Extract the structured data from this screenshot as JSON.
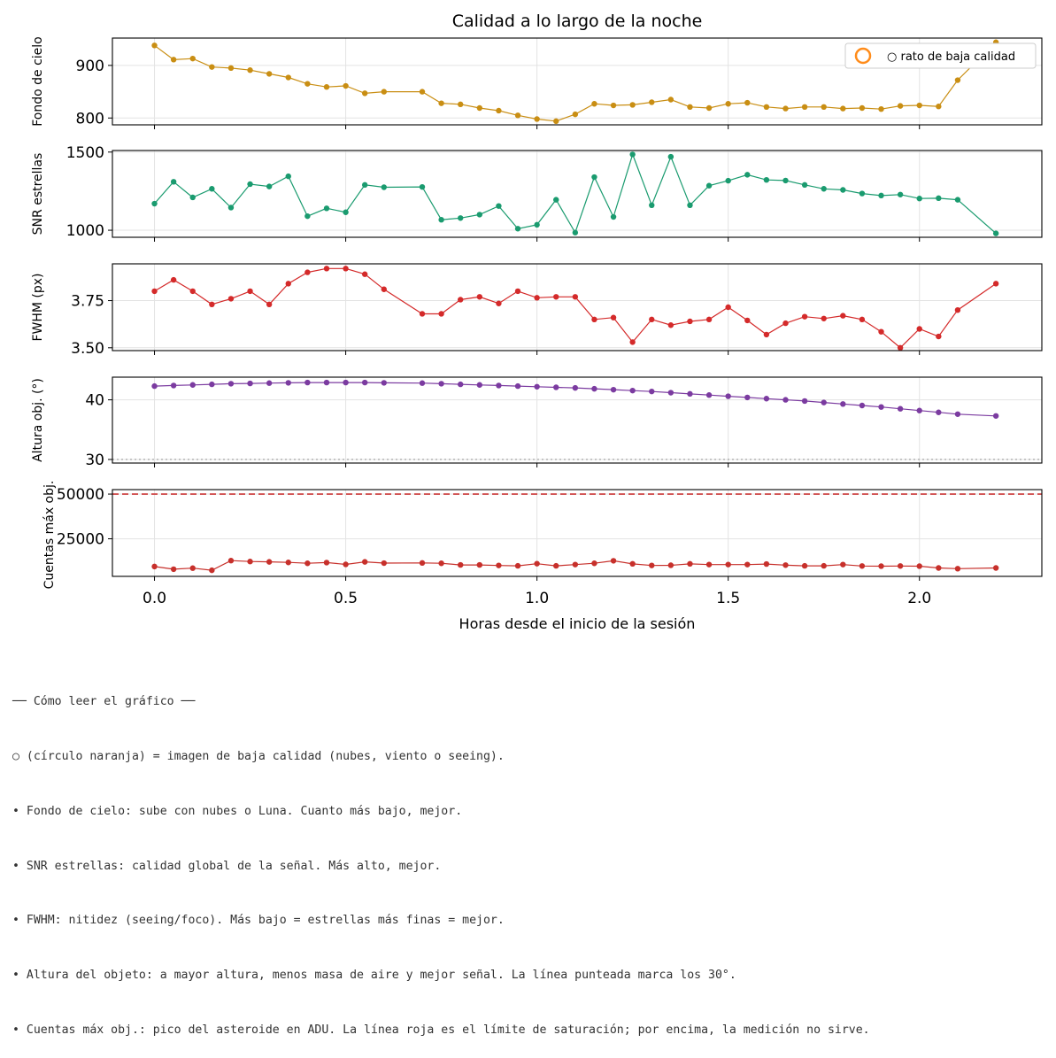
{
  "chart_data": {
    "type": "line",
    "title": "Calidad a lo largo de la noche",
    "xlabel": "Horas desde el inicio de la sesión",
    "xlim": [
      -0.11,
      2.32
    ],
    "xticks": [
      0.0,
      0.5,
      1.0,
      1.5,
      2.0
    ],
    "xtick_labels": [
      "0.0",
      "0.5",
      "1.0",
      "1.5",
      "2.0"
    ],
    "grid": true,
    "legend": {
      "placement": "top-right",
      "label": "○ rato de baja calidad",
      "marker_color": "#ff8c1a"
    },
    "x": [
      0.0,
      0.05,
      0.1,
      0.15,
      0.2,
      0.25,
      0.3,
      0.35,
      0.4,
      0.45,
      0.5,
      0.55,
      0.6,
      0.7,
      0.75,
      0.8,
      0.85,
      0.9,
      0.95,
      1.0,
      1.05,
      1.1,
      1.15,
      1.2,
      1.25,
      1.3,
      1.35,
      1.4,
      1.45,
      1.5,
      1.55,
      1.6,
      1.65,
      1.7,
      1.75,
      1.8,
      1.85,
      1.9,
      1.95,
      2.0,
      2.05,
      2.1,
      2.2
    ],
    "panels": [
      {
        "ylabel": "Fondo de cielo",
        "color": "#c98e13",
        "ylim": [
          787,
          952
        ],
        "yticks": [
          800,
          900
        ],
        "ytick_labels": [
          "800",
          "900"
        ],
        "values": [
          938,
          911,
          913,
          897,
          895,
          891,
          884,
          877,
          865,
          859,
          861,
          847,
          850,
          850,
          828,
          826,
          819,
          814,
          805,
          798,
          794,
          807,
          827,
          824,
          825,
          830,
          835,
          821,
          819,
          827,
          829,
          821,
          818,
          821,
          821,
          818,
          819,
          817,
          823,
          824,
          822,
          872,
          944
        ]
      },
      {
        "ylabel": "SNR estrellas",
        "color": "#1a9b6f",
        "ylim": [
          955,
          1510
        ],
        "yticks": [
          1000,
          1500
        ],
        "ytick_labels": [
          "1000",
          "1500"
        ],
        "values": [
          1170,
          1310,
          1210,
          1265,
          1145,
          1295,
          1280,
          1345,
          1090,
          1140,
          1115,
          1290,
          1275,
          1277,
          1067,
          1078,
          1100,
          1155,
          1010,
          1035,
          1195,
          985,
          1340,
          1085,
          1485,
          1160,
          1470,
          1160,
          1285,
          1317,
          1355,
          1322,
          1318,
          1290,
          1265,
          1258,
          1235,
          1222,
          1228,
          1203,
          1205,
          1195,
          980
        ]
      },
      {
        "ylabel": "FWHM (px)",
        "color": "#d42a2a",
        "ylim": [
          3.485,
          3.945
        ],
        "yticks": [
          3.5,
          3.75
        ],
        "ytick_labels": [
          "3.50",
          "3.75"
        ],
        "values": [
          3.8,
          3.86,
          3.8,
          3.73,
          3.76,
          3.8,
          3.73,
          3.84,
          3.9,
          3.92,
          3.92,
          3.89,
          3.81,
          3.68,
          3.68,
          3.755,
          3.77,
          3.735,
          3.8,
          3.765,
          3.77,
          3.77,
          3.65,
          3.66,
          3.53,
          3.65,
          3.62,
          3.64,
          3.65,
          3.715,
          3.645,
          3.57,
          3.63,
          3.665,
          3.655,
          3.67,
          3.65,
          3.585,
          3.5,
          3.6,
          3.56,
          3.7,
          3.84
        ]
      },
      {
        "ylabel": "Altura obj. (°)",
        "color": "#7b3ba0",
        "ylim": [
          29.4,
          43.8
        ],
        "yticks": [
          30,
          40
        ],
        "ytick_labels": [
          "30",
          "40"
        ],
        "hline": {
          "y": 30,
          "color": "#999999",
          "style": "dotted"
        },
        "values": [
          42.3,
          42.4,
          42.5,
          42.6,
          42.7,
          42.75,
          42.8,
          42.85,
          42.9,
          42.9,
          42.9,
          42.9,
          42.85,
          42.8,
          42.7,
          42.6,
          42.5,
          42.4,
          42.3,
          42.2,
          42.1,
          42.0,
          41.85,
          41.7,
          41.55,
          41.4,
          41.2,
          41.0,
          40.8,
          40.6,
          40.4,
          40.2,
          40.0,
          39.8,
          39.55,
          39.3,
          39.05,
          38.8,
          38.5,
          38.2,
          37.9,
          37.6,
          37.3
        ]
      },
      {
        "ylabel": "Cuentas máx obj.",
        "color": "#c7302b",
        "ylim": [
          4000,
          52500
        ],
        "yticks": [
          25000,
          50000
        ],
        "ytick_labels": [
          "25000",
          "50000"
        ],
        "hline": {
          "y": 50000,
          "color": "#d05050",
          "style": "dashed"
        },
        "values": [
          9500,
          8000,
          8600,
          7400,
          12800,
          12300,
          12100,
          11800,
          11300,
          11700,
          10700,
          12100,
          11400,
          11500,
          11300,
          10400,
          10400,
          10100,
          9900,
          11100,
          9900,
          10600,
          11300,
          12700,
          11000,
          10100,
          10200,
          11000,
          10600,
          10600,
          10600,
          10900,
          10300,
          9900,
          9900,
          10600,
          9800,
          9700,
          9800,
          9700,
          8700,
          8300,
          8700
        ]
      }
    ]
  },
  "notes": {
    "lines": [
      "── Cómo leer el gráfico ──",
      "○ (círculo naranja) = imagen de baja calidad (nubes, viento o seeing).",
      "• Fondo de cielo: sube con nubes o Luna. Cuanto más bajo, mejor.",
      "• SNR estrellas: calidad global de la señal. Más alto, mejor.",
      "• FWHM: nitidez (seeing/foco). Más bajo = estrellas más finas = mejor.",
      "• Altura del objeto: a mayor altura, menos masa de aire y mejor señal. La línea punteada marca los 30°.",
      "• Cuentas máx obj.: pico del asteroide en ADU. La línea roja es el límite de saturación; por encima, la medición no sirve."
    ]
  }
}
